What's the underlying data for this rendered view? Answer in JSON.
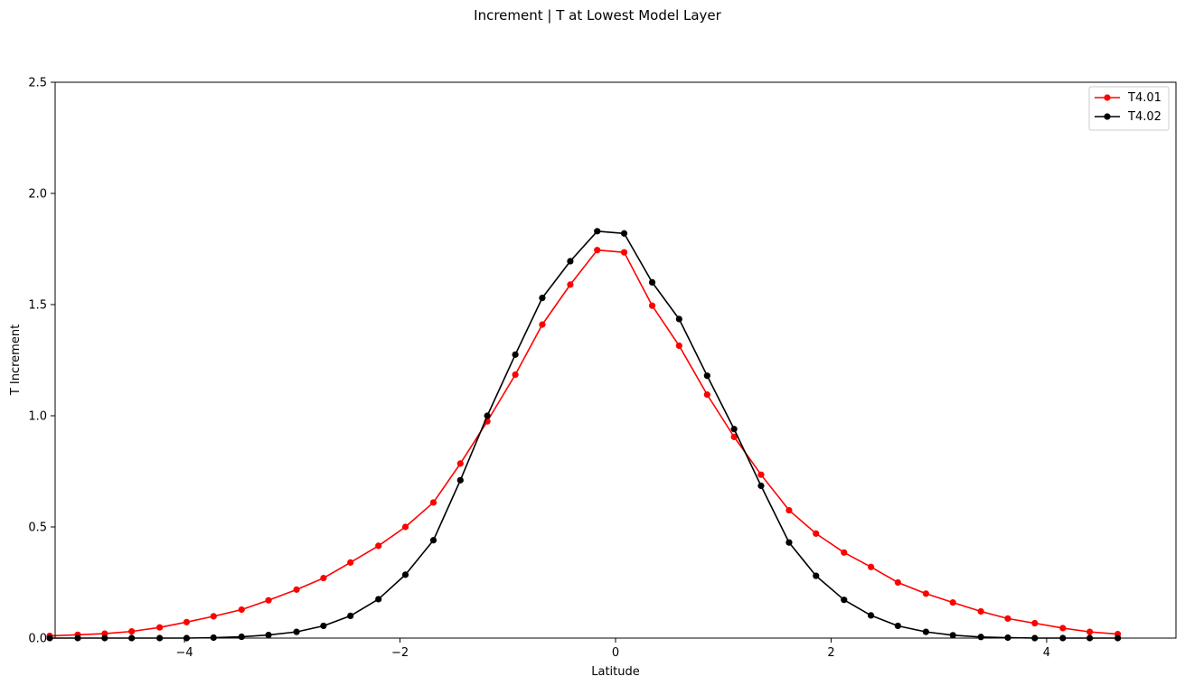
{
  "chart_data": {
    "type": "line",
    "title": "Increment | T at Lowest Model Layer",
    "xlabel": "Latitude",
    "ylabel": "T Increment",
    "xlim": [
      -5.2,
      5.2
    ],
    "ylim": [
      0,
      2.5
    ],
    "xticks": [
      -4,
      -2,
      0,
      2,
      4
    ],
    "yticks": [
      0.0,
      0.5,
      1.0,
      1.5,
      2.0,
      2.5
    ],
    "xtick_labels": [
      "−4",
      "−2",
      "0",
      "2",
      "4"
    ],
    "ytick_labels": [
      "0.0",
      "0.5",
      "1.0",
      "1.5",
      "2.0",
      "2.5"
    ],
    "grid": false,
    "legend_position": "top-right",
    "x": [
      -5.25,
      -4.99,
      -4.74,
      -4.49,
      -4.23,
      -3.98,
      -3.73,
      -3.47,
      -3.22,
      -2.96,
      -2.71,
      -2.46,
      -2.2,
      -1.95,
      -1.69,
      -1.44,
      -1.19,
      -0.93,
      -0.68,
      -0.42,
      -0.17,
      0.08,
      0.34,
      0.59,
      0.85,
      1.1,
      1.35,
      1.61,
      1.86,
      2.12,
      2.37,
      2.62,
      2.88,
      3.13,
      3.39,
      3.64,
      3.89,
      4.15,
      4.4,
      4.66
    ],
    "series": [
      {
        "name": "T4.01",
        "color": "#ff0000",
        "values": [
          0.01,
          0.015,
          0.02,
          0.03,
          0.048,
          0.072,
          0.098,
          0.128,
          0.17,
          0.218,
          0.27,
          0.34,
          0.415,
          0.5,
          0.61,
          0.785,
          0.975,
          1.185,
          1.41,
          1.59,
          1.745,
          1.735,
          1.495,
          1.315,
          1.095,
          0.905,
          0.735,
          0.575,
          0.47,
          0.385,
          0.32,
          0.25,
          0.2,
          0.16,
          0.12,
          0.088,
          0.067,
          0.045,
          0.028,
          0.018
        ]
      },
      {
        "name": "T4.02",
        "color": "#000000",
        "values": [
          0.0,
          0.0,
          0.0,
          0.0,
          0.0,
          0.0,
          0.002,
          0.006,
          0.014,
          0.028,
          0.055,
          0.1,
          0.175,
          0.285,
          0.44,
          0.71,
          1.0,
          1.275,
          1.53,
          1.695,
          1.83,
          1.82,
          1.6,
          1.435,
          1.18,
          0.94,
          0.685,
          0.43,
          0.28,
          0.172,
          0.102,
          0.055,
          0.028,
          0.013,
          0.005,
          0.002,
          0.0,
          0.0,
          0.0,
          0.0
        ]
      }
    ]
  }
}
